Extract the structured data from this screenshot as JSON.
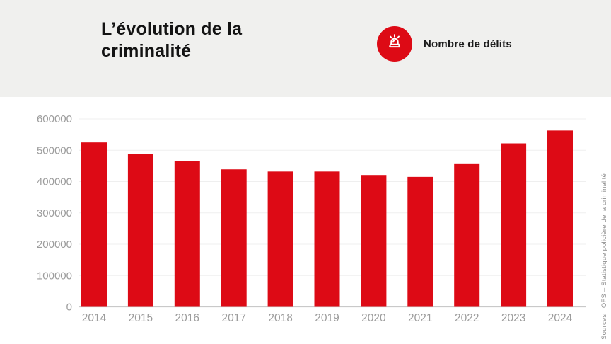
{
  "header": {
    "title": "L’évolution de la criminalité",
    "legend": {
      "icon": "siren-icon",
      "label": "Nombre de délits"
    }
  },
  "chart_data": {
    "type": "bar",
    "title": "L’évolution de la criminalité",
    "series_label": "Nombre de délits",
    "categories": [
      "2014",
      "2015",
      "2016",
      "2017",
      "2018",
      "2019",
      "2020",
      "2021",
      "2022",
      "2023",
      "2024"
    ],
    "values": [
      525000,
      487000,
      466000,
      439000,
      432000,
      432000,
      421000,
      415000,
      458000,
      522000,
      563000
    ],
    "xlabel": "",
    "ylabel": "",
    "ylim": [
      0,
      600000
    ],
    "ytick_step": 100000,
    "ytick_labels": [
      "0",
      "100000",
      "200000",
      "300000",
      "400000",
      "500000",
      "600000"
    ],
    "grid": true,
    "legend_position": "top-right"
  },
  "source": {
    "text": "Sources : OFS – Statistique policière de la criminalité"
  },
  "colors": {
    "bar": "#dd0a15",
    "legend_badge": "#dd0a15",
    "header_bg": "#f0f0ee",
    "gridline": "#efefef",
    "baseline": "#c9c9c9",
    "axis_label": "#9c9c9c",
    "title_text": "#131313"
  }
}
